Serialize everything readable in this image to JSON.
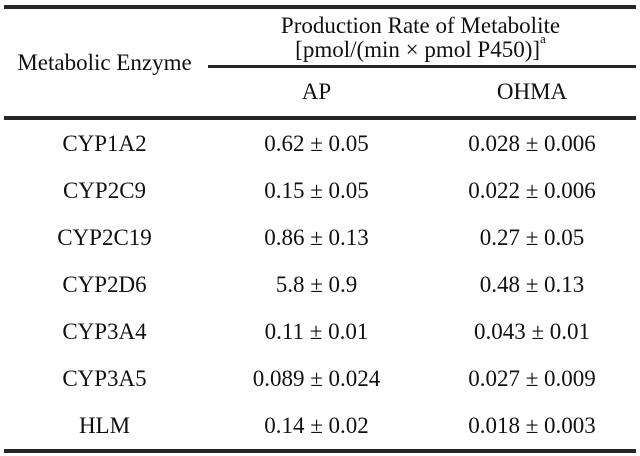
{
  "table": {
    "corner_header": "Metabolic Enzyme",
    "span_header": {
      "line1": "Production Rate of Metabolite",
      "unit_line": "[pmol/(min × pmol P450)]",
      "superscript": "a"
    },
    "sub_headers": {
      "ap": "AP",
      "ohma": "OHMA"
    },
    "rows": [
      {
        "enzyme": "CYP1A2",
        "ap": "0.62 ± 0.05",
        "ohma": "0.028 ± 0.006"
      },
      {
        "enzyme": "CYP2C9",
        "ap": "0.15 ± 0.05",
        "ohma": "0.022 ± 0.006"
      },
      {
        "enzyme": "CYP2C19",
        "ap": "0.86 ± 0.13",
        "ohma": "0.27 ± 0.05"
      },
      {
        "enzyme": "CYP2D6",
        "ap": "5.8 ± 0.9",
        "ohma": "0.48 ± 0.13"
      },
      {
        "enzyme": "CYP3A4",
        "ap": "0.11 ± 0.01",
        "ohma": "0.043 ± 0.01"
      },
      {
        "enzyme": "CYP3A5",
        "ap": "0.089 ± 0.024",
        "ohma": "0.027 ± 0.009"
      },
      {
        "enzyme": "HLM",
        "ap": "0.14 ± 0.02",
        "ohma": "0.018 ± 0.003"
      }
    ],
    "colors": {
      "text": "#101010",
      "rule": "#262626",
      "background": "#ffffff"
    }
  }
}
